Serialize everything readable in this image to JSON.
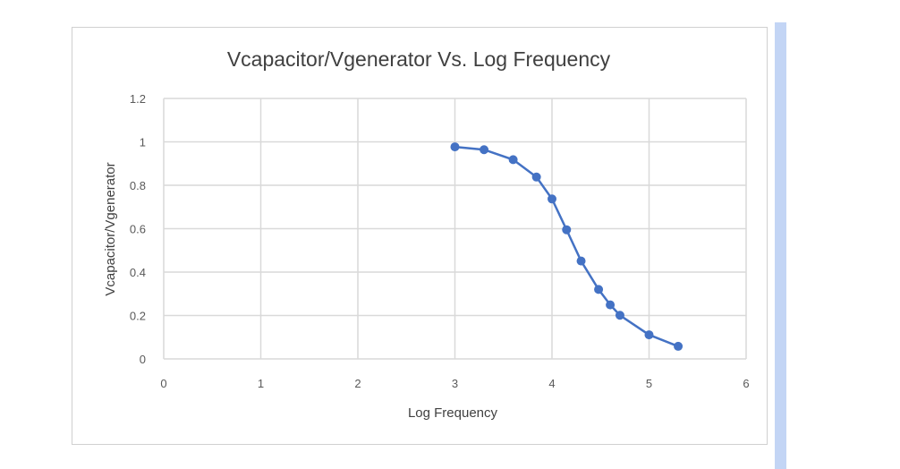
{
  "chart_data": {
    "type": "line",
    "title": "Vcapacitor/Vgenerator Vs. Log Frequency",
    "xlabel": "Log Frequency",
    "ylabel": "Vcapacitor/Vgenerator",
    "xlim": [
      0,
      6
    ],
    "ylim": [
      0,
      1.2
    ],
    "xticks": [
      "0",
      "1",
      "2",
      "3",
      "4",
      "5",
      "6"
    ],
    "yticks": [
      "0",
      "0.2",
      "0.4",
      "0.6",
      "0.8",
      "1",
      "1.2"
    ],
    "grid": true,
    "series": [
      {
        "name": "Vcapacitor/Vgenerator",
        "color": "#4472c4",
        "x": [
          3.0,
          3.3,
          3.6,
          3.84,
          4.0,
          4.15,
          4.3,
          4.48,
          4.6,
          4.7,
          5.0,
          5.3
        ],
        "y": [
          0.977,
          0.964,
          0.918,
          0.838,
          0.737,
          0.595,
          0.451,
          0.32,
          0.249,
          0.201,
          0.111,
          0.058
        ]
      }
    ]
  }
}
